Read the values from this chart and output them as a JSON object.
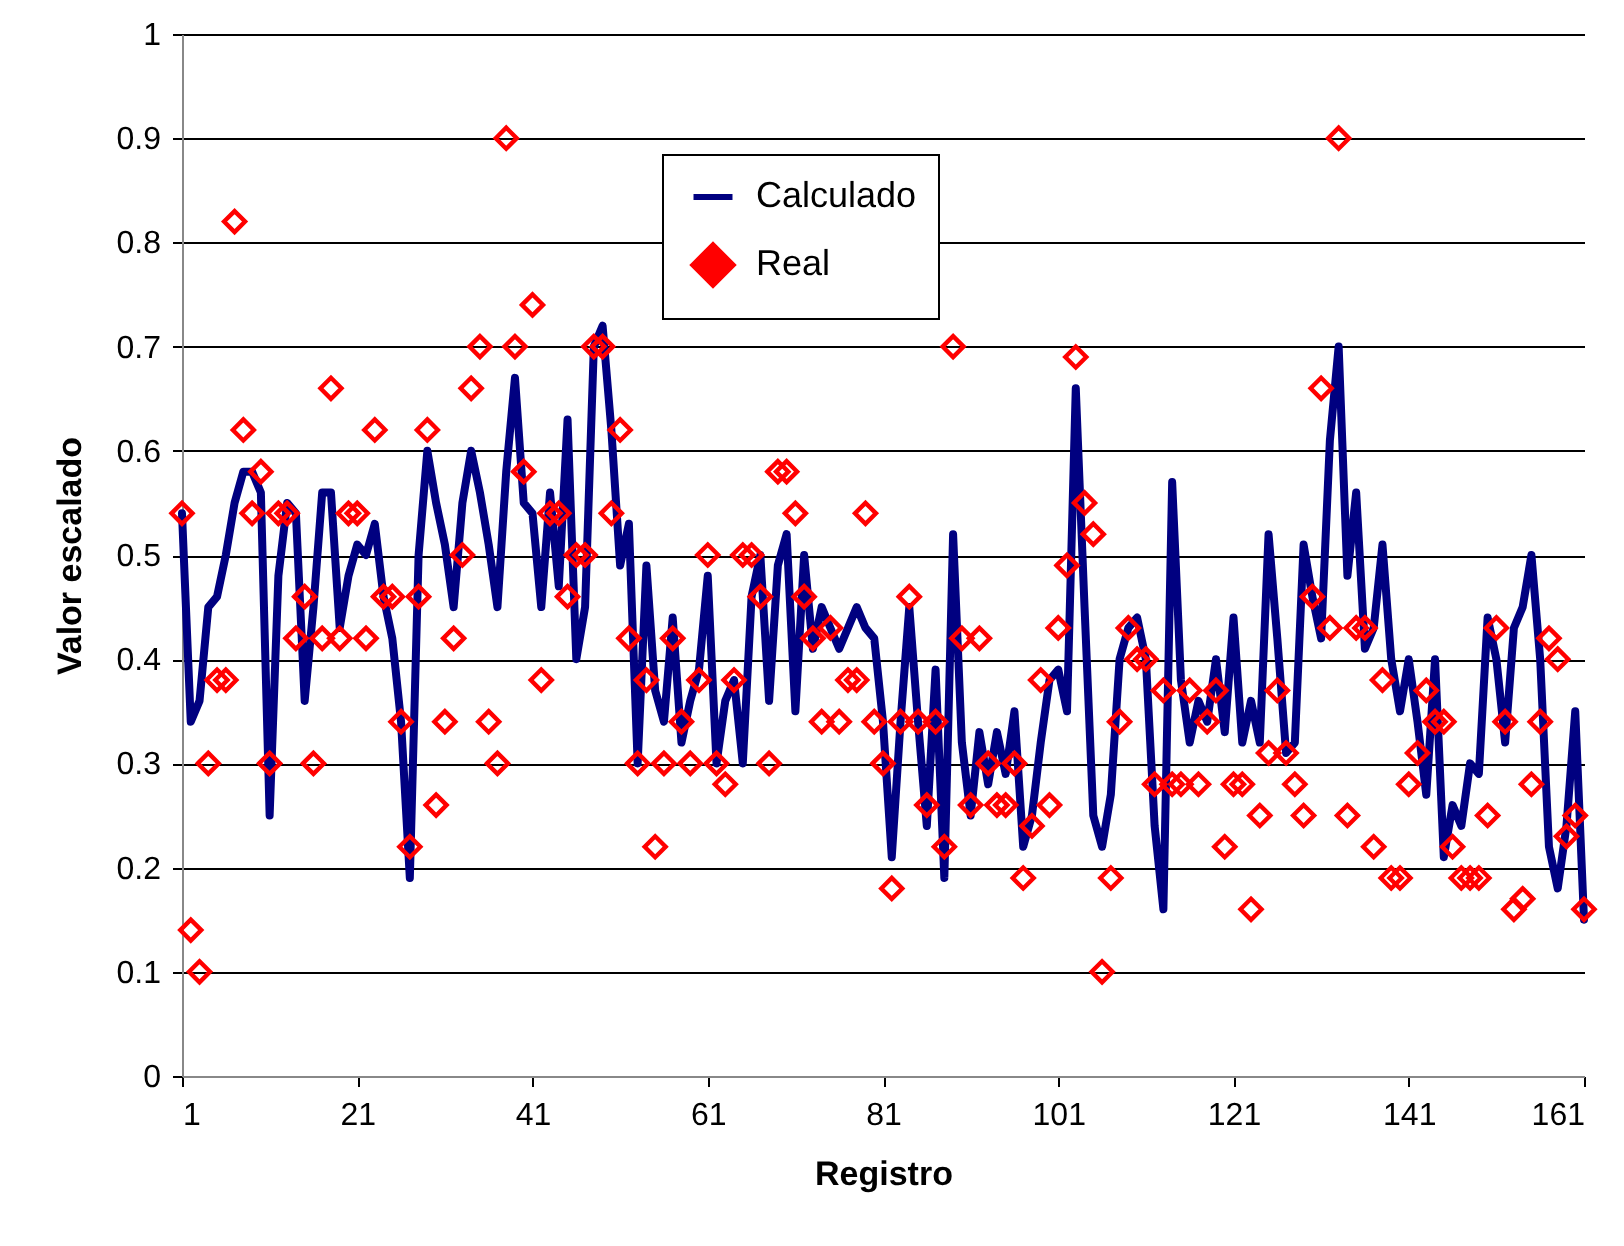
{
  "chart_data": {
    "type": "line",
    "xlabel": "Registro",
    "ylabel": "Valor escalado",
    "x": [
      1,
      2,
      3,
      4,
      5,
      6,
      7,
      8,
      9,
      10,
      11,
      12,
      13,
      14,
      15,
      16,
      17,
      18,
      19,
      20,
      21,
      22,
      23,
      24,
      25,
      26,
      27,
      28,
      29,
      30,
      31,
      32,
      33,
      34,
      35,
      36,
      37,
      38,
      39,
      40,
      41,
      42,
      43,
      44,
      45,
      46,
      47,
      48,
      49,
      50,
      51,
      52,
      53,
      54,
      55,
      56,
      57,
      58,
      59,
      60,
      61,
      62,
      63,
      64,
      65,
      66,
      67,
      68,
      69,
      70,
      71,
      72,
      73,
      74,
      75,
      76,
      77,
      78,
      79,
      80,
      81,
      82,
      83,
      84,
      85,
      86,
      87,
      88,
      89,
      90,
      91,
      92,
      93,
      94,
      95,
      96,
      97,
      98,
      99,
      100,
      101,
      102,
      103,
      104,
      105,
      106,
      107,
      108,
      109,
      110,
      111,
      112,
      113,
      114,
      115,
      116,
      117,
      118,
      119,
      120,
      121,
      122,
      123,
      124,
      125,
      126,
      127,
      128,
      129,
      130,
      131,
      132,
      133,
      134,
      135,
      136,
      137,
      138,
      139,
      140,
      141,
      142,
      143,
      144,
      145,
      146,
      147,
      148,
      149,
      150,
      151,
      152,
      153,
      154,
      155,
      156,
      157,
      158,
      159,
      160,
      161
    ],
    "series": [
      {
        "name": "Calculado",
        "color": "#000080",
        "marker": "none",
        "values": [
          0.54,
          0.34,
          0.36,
          0.45,
          0.46,
          0.5,
          0.55,
          0.58,
          0.58,
          0.56,
          0.25,
          0.48,
          0.55,
          0.54,
          0.36,
          0.45,
          0.56,
          0.56,
          0.43,
          0.48,
          0.51,
          0.5,
          0.53,
          0.46,
          0.42,
          0.34,
          0.19,
          0.5,
          0.6,
          0.55,
          0.51,
          0.45,
          0.55,
          0.6,
          0.56,
          0.51,
          0.45,
          0.58,
          0.67,
          0.55,
          0.54,
          0.45,
          0.56,
          0.47,
          0.63,
          0.4,
          0.45,
          0.7,
          0.72,
          0.62,
          0.49,
          0.53,
          0.3,
          0.49,
          0.37,
          0.34,
          0.44,
          0.32,
          0.36,
          0.39,
          0.48,
          0.3,
          0.36,
          0.38,
          0.3,
          0.46,
          0.5,
          0.36,
          0.49,
          0.52,
          0.35,
          0.5,
          0.41,
          0.45,
          0.43,
          0.41,
          0.43,
          0.45,
          0.43,
          0.42,
          0.34,
          0.21,
          0.34,
          0.45,
          0.34,
          0.24,
          0.39,
          0.19,
          0.52,
          0.32,
          0.25,
          0.33,
          0.28,
          0.33,
          0.29,
          0.35,
          0.22,
          0.25,
          0.32,
          0.38,
          0.39,
          0.35,
          0.66,
          0.45,
          0.25,
          0.22,
          0.27,
          0.4,
          0.43,
          0.44,
          0.4,
          0.24,
          0.16,
          0.57,
          0.38,
          0.32,
          0.36,
          0.34,
          0.4,
          0.33,
          0.44,
          0.32,
          0.36,
          0.32,
          0.52,
          0.42,
          0.31,
          0.32,
          0.51,
          0.46,
          0.42,
          0.61,
          0.7,
          0.48,
          0.56,
          0.41,
          0.43,
          0.51,
          0.4,
          0.35,
          0.4,
          0.34,
          0.27,
          0.4,
          0.21,
          0.26,
          0.24,
          0.3,
          0.29,
          0.44,
          0.4,
          0.32,
          0.43,
          0.45,
          0.5,
          0.4,
          0.22,
          0.18,
          0.24,
          0.35,
          0.15
        ]
      },
      {
        "name": "Real",
        "type": "scatter",
        "color": "#ff0000",
        "marker": "diamond",
        "values": [
          0.54,
          0.14,
          0.1,
          0.3,
          0.38,
          0.38,
          0.82,
          0.62,
          0.54,
          0.58,
          0.3,
          0.54,
          0.54,
          0.42,
          0.46,
          0.3,
          0.42,
          0.66,
          0.42,
          0.54,
          0.54,
          0.42,
          0.62,
          0.46,
          0.46,
          0.34,
          0.22,
          0.46,
          0.62,
          0.26,
          0.34,
          0.42,
          0.5,
          0.66,
          0.7,
          0.34,
          0.3,
          0.9,
          0.7,
          0.58,
          0.74,
          0.38,
          0.54,
          0.54,
          0.46,
          0.5,
          0.5,
          0.7,
          0.7,
          0.54,
          0.62,
          0.42,
          0.3,
          0.38,
          0.22,
          0.3,
          0.42,
          0.34,
          0.3,
          0.38,
          0.5,
          0.3,
          0.28,
          0.38,
          0.5,
          0.5,
          0.46,
          0.3,
          0.58,
          0.58,
          0.54,
          0.46,
          0.42,
          0.34,
          0.43,
          0.34,
          0.38,
          0.38,
          0.54,
          0.34,
          0.3,
          0.18,
          0.34,
          0.46,
          0.34,
          0.26,
          0.34,
          0.22,
          0.7,
          0.42,
          0.26,
          0.42,
          0.3,
          0.26,
          0.26,
          0.3,
          0.19,
          0.24,
          0.38,
          0.26,
          0.43,
          0.49,
          0.69,
          0.55,
          0.52,
          0.1,
          0.19,
          0.34,
          0.43,
          0.4,
          0.4,
          0.28,
          0.37,
          0.28,
          0.28,
          0.37,
          0.28,
          0.34,
          0.37,
          0.22,
          0.28,
          0.28,
          0.16,
          0.25,
          0.31,
          0.37,
          0.31,
          0.28,
          0.25,
          0.46,
          0.66,
          0.43,
          0.9,
          0.25,
          0.43,
          0.43,
          0.22,
          0.38,
          0.19,
          0.19,
          0.28,
          0.31,
          0.37,
          0.34,
          0.34,
          0.22,
          0.19,
          0.19,
          0.19,
          0.25,
          0.43,
          0.34,
          0.16,
          0.17,
          0.28,
          0.34,
          0.42,
          0.4,
          0.23,
          0.25,
          0.16
        ]
      }
    ],
    "xlim": [
      1,
      161
    ],
    "xticks": [
      1,
      21,
      41,
      61,
      81,
      101,
      121,
      141,
      161
    ],
    "ylim": [
      0,
      1
    ],
    "yticks": [
      0,
      0.1,
      0.2,
      0.3,
      0.4,
      0.5,
      0.6,
      0.7,
      0.8,
      0.9,
      1
    ],
    "grid": "y",
    "legend": "top"
  }
}
